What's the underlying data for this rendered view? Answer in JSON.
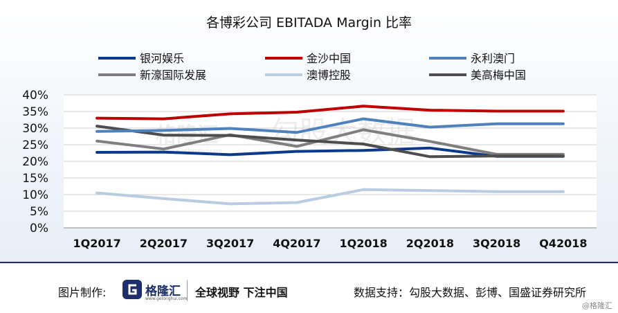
{
  "chart_data": {
    "type": "line",
    "title": "各博彩公司 EBITADA Margin 比率",
    "categories": [
      "1Q2017",
      "2Q2017",
      "3Q2017",
      "4Q2017",
      "1Q2018",
      "2Q2018",
      "3Q2018",
      "Q42018"
    ],
    "yticks": [
      "0%",
      "5%",
      "10%",
      "15%",
      "20%",
      "25%",
      "30%",
      "35%",
      "40%"
    ],
    "ylim": [
      0,
      40
    ],
    "y_unit": "%",
    "grid": true,
    "legend_position": "top",
    "series": [
      {
        "name": "银河娱乐",
        "color": "#0b3a8c",
        "values": [
          22.7,
          22.8,
          22.0,
          23.0,
          23.3,
          24.0,
          21.5,
          21.5
        ]
      },
      {
        "name": "金沙中国",
        "color": "#c00000",
        "values": [
          33.0,
          32.8,
          34.3,
          34.8,
          36.6,
          35.4,
          35.1,
          35.1
        ]
      },
      {
        "name": "永利澳门",
        "color": "#4f81bd",
        "values": [
          29.0,
          29.3,
          29.9,
          28.7,
          32.8,
          30.3,
          31.3,
          31.3
        ]
      },
      {
        "name": "新濠国际发展",
        "color": "#7f7f7f",
        "values": [
          26.1,
          23.7,
          28.0,
          24.5,
          29.5,
          26.0,
          22.1,
          22.1
        ]
      },
      {
        "name": "澳博控股",
        "color": "#b8cce4",
        "values": [
          10.5,
          8.8,
          7.2,
          7.6,
          11.5,
          11.2,
          10.9,
          10.9
        ]
      },
      {
        "name": "美高梅中国",
        "color": "#4d4d4d",
        "values": [
          30.6,
          27.9,
          27.8,
          26.4,
          25.2,
          21.4,
          21.6,
          21.6
        ]
      }
    ],
    "watermark": [
      "格隆汇",
      "勾股大数据",
      "www.gelonghui.com"
    ]
  },
  "footer": {
    "made_by_label": "图片制作:",
    "brand": "格隆汇",
    "brand_domain": "www.gelonghui.com",
    "slogan": "全球视野 下注中国",
    "source": "数据支持：勾股大数据、彭博、国盛证券研究所",
    "corner_watermark": "@格隆汇"
  }
}
